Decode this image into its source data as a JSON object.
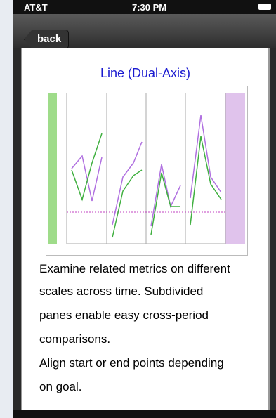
{
  "status": {
    "carrier": "AT&T",
    "time": "7:30 PM"
  },
  "nav": {
    "back": "back"
  },
  "content": {
    "title": "Line (Dual-Axis)",
    "lines": [
      "Examine related metrics on different",
      "scales across time. Subdivided",
      "panes enable easy cross-period",
      "comparisons.",
      "Align start or end points depending",
      "on goal."
    ]
  }
}
